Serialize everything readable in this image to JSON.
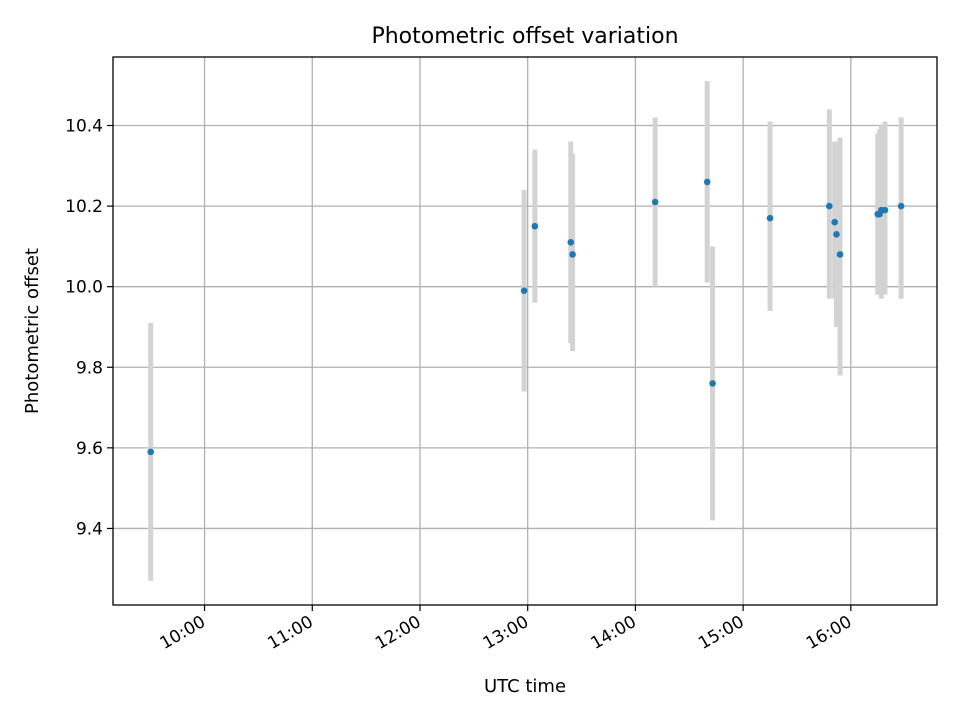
{
  "chart_data": {
    "type": "scatter",
    "title": "Photometric offset variation",
    "xlabel": "UTC time",
    "ylabel": "Photometric offset",
    "xlim": [
      "09:09",
      "16:48"
    ],
    "ylim": [
      9.21,
      10.57
    ],
    "grid": true,
    "x_ticks": [
      "10:00",
      "11:00",
      "12:00",
      "13:00",
      "14:00",
      "15:00",
      "16:00"
    ],
    "y_ticks": [
      "9.4",
      "9.6",
      "9.8",
      "10.0",
      "10.2",
      "10.4"
    ],
    "colors": {
      "point": "#1f77b4",
      "errorbar": "#d3d3d3",
      "grid": "#b0b0b0"
    },
    "points": [
      {
        "x": "09:30",
        "y": 9.59,
        "err_low": 9.27,
        "err_high": 9.91
      },
      {
        "x": "12:58",
        "y": 9.99,
        "err_low": 9.74,
        "err_high": 10.24
      },
      {
        "x": "13:04",
        "y": 10.15,
        "err_low": 9.96,
        "err_high": 10.34
      },
      {
        "x": "13:24",
        "y": 10.11,
        "err_low": 9.86,
        "err_high": 10.36
      },
      {
        "x": "13:25",
        "y": 10.08,
        "err_low": 9.84,
        "err_high": 10.33
      },
      {
        "x": "14:11",
        "y": 10.21,
        "err_low": 10.0,
        "err_high": 10.42
      },
      {
        "x": "14:40",
        "y": 10.26,
        "err_low": 10.01,
        "err_high": 10.51
      },
      {
        "x": "14:43",
        "y": 9.76,
        "err_low": 9.42,
        "err_high": 10.1
      },
      {
        "x": "15:15",
        "y": 10.17,
        "err_low": 9.94,
        "err_high": 10.41
      },
      {
        "x": "15:48",
        "y": 10.2,
        "err_low": 9.97,
        "err_high": 10.44
      },
      {
        "x": "15:51",
        "y": 10.16,
        "err_low": 9.97,
        "err_high": 10.36
      },
      {
        "x": "15:52",
        "y": 10.13,
        "err_low": 9.9,
        "err_high": 10.36
      },
      {
        "x": "15:54",
        "y": 10.08,
        "err_low": 9.78,
        "err_high": 10.37
      },
      {
        "x": "16:15",
        "y": 10.18,
        "err_low": 9.98,
        "err_high": 10.38
      },
      {
        "x": "16:16",
        "y": 10.18,
        "err_low": 9.98,
        "err_high": 10.39
      },
      {
        "x": "16:17",
        "y": 10.19,
        "err_low": 9.97,
        "err_high": 10.4
      },
      {
        "x": "16:19",
        "y": 10.19,
        "err_low": 9.98,
        "err_high": 10.41
      },
      {
        "x": "16:28",
        "y": 10.2,
        "err_low": 9.97,
        "err_high": 10.42
      }
    ]
  }
}
